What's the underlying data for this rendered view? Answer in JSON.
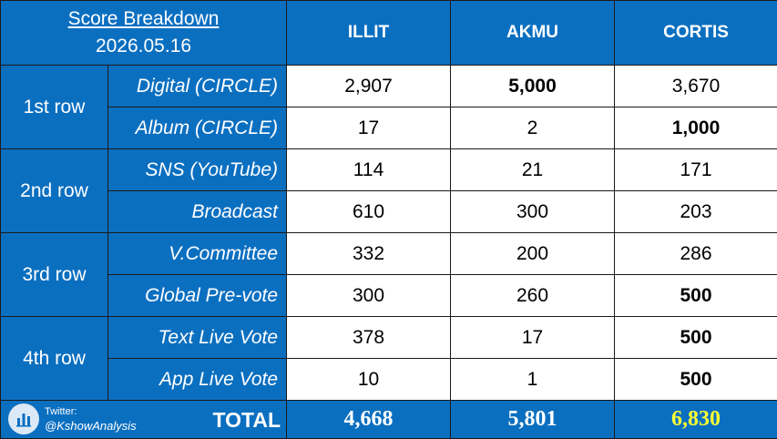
{
  "header": {
    "title": "Score Breakdown",
    "date": "2026.05.16",
    "columns": [
      "ILLIT",
      "AKMU",
      "CORTIS"
    ]
  },
  "groups": [
    {
      "label": "1st row",
      "rows": [
        {
          "label": "Digital (CIRCLE)",
          "values": [
            "2,907",
            "5,000",
            "3,670"
          ],
          "bold": [
            false,
            true,
            false
          ]
        },
        {
          "label": "Album (CIRCLE)",
          "values": [
            "17",
            "2",
            "1,000"
          ],
          "bold": [
            false,
            false,
            true
          ]
        }
      ]
    },
    {
      "label": "2nd row",
      "rows": [
        {
          "label": "SNS (YouTube)",
          "values": [
            "114",
            "21",
            "171"
          ],
          "bold": [
            false,
            false,
            false
          ]
        },
        {
          "label": "Broadcast",
          "values": [
            "610",
            "300",
            "203"
          ],
          "bold": [
            false,
            false,
            false
          ]
        }
      ]
    },
    {
      "label": "3rd row",
      "rows": [
        {
          "label": "V.Committee",
          "values": [
            "332",
            "200",
            "286"
          ],
          "bold": [
            false,
            false,
            false
          ]
        },
        {
          "label": "Global Pre-vote",
          "values": [
            "300",
            "260",
            "500"
          ],
          "bold": [
            false,
            false,
            true
          ]
        }
      ]
    },
    {
      "label": "4th row",
      "rows": [
        {
          "label": "Text Live Vote",
          "values": [
            "378",
            "17",
            "500"
          ],
          "bold": [
            false,
            false,
            true
          ]
        },
        {
          "label": "App Live Vote",
          "values": [
            "10",
            "1",
            "500"
          ],
          "bold": [
            false,
            false,
            true
          ]
        }
      ]
    }
  ],
  "footer": {
    "source_line1": "Twitter:",
    "source_line2": "@KshowAnalysis",
    "total_label": "TOTAL",
    "totals": [
      "4,668",
      "5,801",
      "6,830"
    ]
  },
  "colors": {
    "header_blue": "#0b6fc0",
    "total_highlight": "#ffff33"
  },
  "icons": {
    "logo": "bar-chart-icon"
  }
}
